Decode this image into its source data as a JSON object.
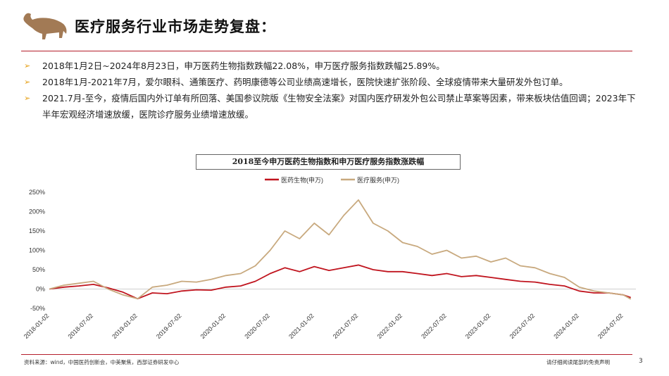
{
  "header": {
    "title": "医疗服务行业市场走势复盘："
  },
  "bullets": [
    "2018年1月2日~2024年8月23日，申万医药生物指数跌幅22.08%，申万医疗服务指数跌幅25.89%。",
    "2018年1月-2021年7月，爱尔眼科、通策医疗、药明康德等公司业绩高速增长，医院快速扩张阶段、全球疫情带来大量研发外包订单。",
    " 2021.7月-至今，疫情后国内外订单有所回落、美国参议院版《生物安全法案》对国内医疗研发外包公司禁止草案等因素，带来板块估值回调；2023年下半年宏观经济增速放缓，医院诊疗服务业绩增速放缓。"
  ],
  "chart_data": {
    "type": "line",
    "title": "2018至今申万医药生物指数和申万医疗服务指数涨跌幅",
    "xlabel": "",
    "ylabel": "",
    "ylim": [
      -50,
      250
    ],
    "yticks": [
      "250%",
      "200%",
      "150%",
      "100%",
      "50%",
      "0%",
      "-50%"
    ],
    "xticks": [
      "2018-01-02",
      "2018-07-02",
      "2019-01-02",
      "2019-07-02",
      "2020-01-02",
      "2020-07-02",
      "2021-01-02",
      "2021-07-02",
      "2022-01-02",
      "2022-07-02",
      "2023-01-02",
      "2023-07-02",
      "2024-01-02",
      "2024-07-02"
    ],
    "legend_position": "top-center",
    "grid": false,
    "x": [
      "2018-01",
      "2018-03",
      "2018-05",
      "2018-07",
      "2018-09",
      "2018-11",
      "2019-01",
      "2019-03",
      "2019-05",
      "2019-07",
      "2019-09",
      "2019-11",
      "2020-01",
      "2020-03",
      "2020-05",
      "2020-07",
      "2020-09",
      "2020-11",
      "2021-01",
      "2021-03",
      "2021-05",
      "2021-07",
      "2021-09",
      "2021-11",
      "2022-01",
      "2022-03",
      "2022-05",
      "2022-07",
      "2022-09",
      "2022-11",
      "2023-01",
      "2023-03",
      "2023-05",
      "2023-07",
      "2023-09",
      "2023-11",
      "2024-01",
      "2024-03",
      "2024-05",
      "2024-07",
      "2024-08"
    ],
    "series": [
      {
        "name": "医药生物(申万)",
        "color": "#c0141e",
        "values": [
          0,
          5,
          8,
          12,
          3,
          -8,
          -25,
          -10,
          -12,
          -5,
          -2,
          -3,
          5,
          8,
          20,
          40,
          55,
          45,
          58,
          48,
          55,
          62,
          50,
          45,
          45,
          40,
          35,
          40,
          32,
          35,
          30,
          25,
          20,
          18,
          12,
          8,
          -5,
          -10,
          -10,
          -15,
          -22
        ]
      },
      {
        "name": "医疗服务(申万)",
        "color": "#c8a97e",
        "values": [
          0,
          10,
          15,
          20,
          0,
          -15,
          -25,
          5,
          10,
          20,
          18,
          25,
          35,
          40,
          60,
          100,
          150,
          130,
          170,
          140,
          190,
          230,
          170,
          150,
          120,
          110,
          90,
          100,
          80,
          85,
          70,
          80,
          60,
          55,
          40,
          30,
          5,
          -5,
          -10,
          -15,
          -26
        ]
      }
    ]
  },
  "footer": {
    "source": "资料来源：wind，中国医药创新会，中美聚焦，西部证券研发中心",
    "disclaimer": "请仔细阅读尾部的免责声明",
    "page": "3"
  },
  "colors": {
    "accent": "#b51e2c",
    "logo": "#a27a55",
    "bullet_arrow": "#e6a118"
  }
}
